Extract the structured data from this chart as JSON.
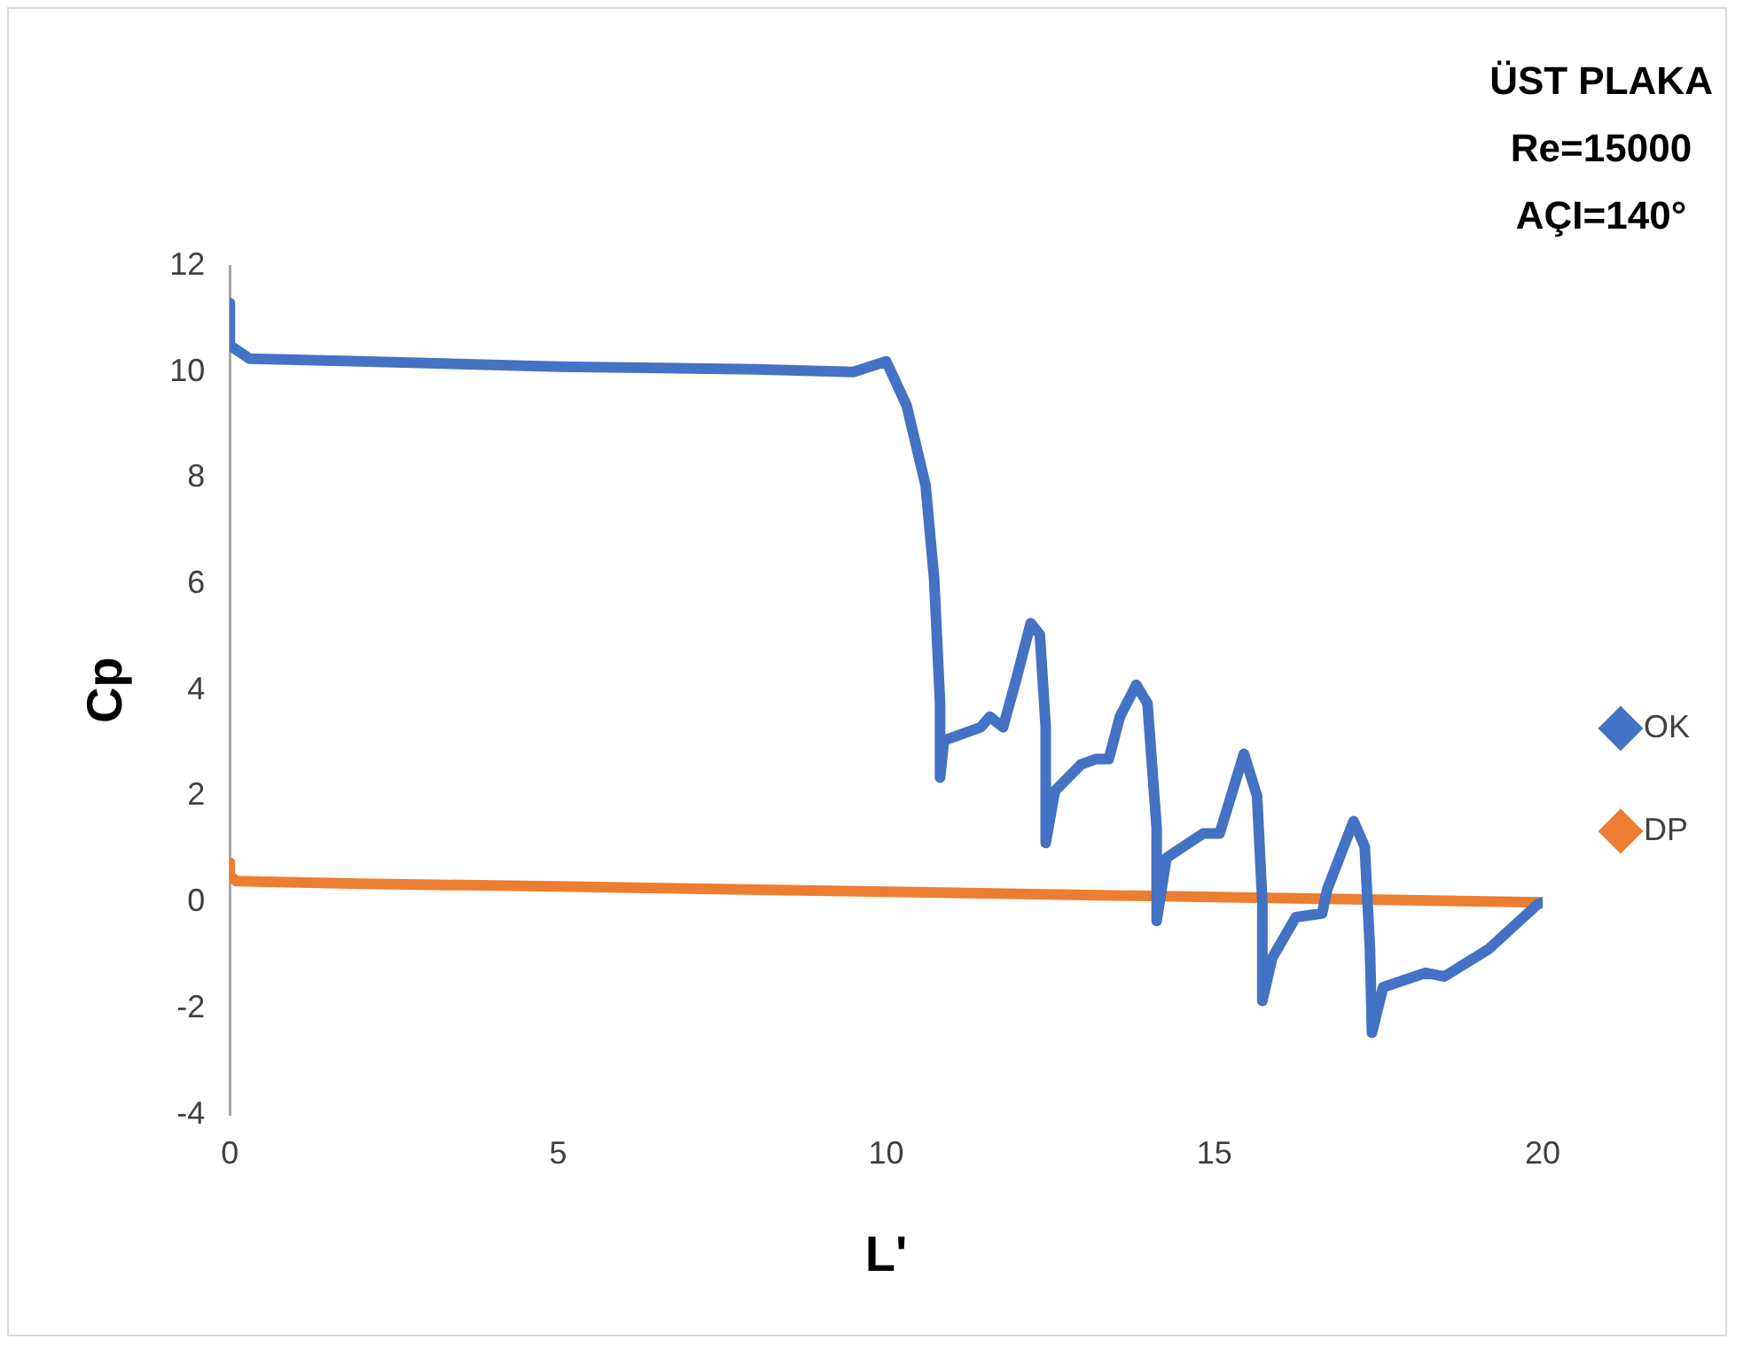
{
  "chart_data": {
    "type": "line",
    "xlabel": "L'",
    "ylabel": "Cp",
    "annotations": [
      "ÜST PLAKA",
      "Re=15000",
      "AÇI=140°"
    ],
    "xlim": [
      0,
      20
    ],
    "xticks": [
      0,
      5,
      10,
      15,
      20
    ],
    "ylim": [
      -4,
      12
    ],
    "yticks": [
      -4,
      -2,
      0,
      2,
      4,
      6,
      8,
      10,
      12
    ],
    "grid": false,
    "legend": "right",
    "marker": "diamond",
    "line_style": "solid",
    "series": [
      {
        "name": "OK",
        "color": "#4472c4",
        "x": [
          0,
          0,
          0.3,
          2,
          5,
          8,
          9.5,
          10,
          10.31,
          10.6,
          10.73,
          10.82,
          10.82,
          10.88,
          11.44,
          11.58,
          11.78,
          11.98,
          12.2,
          12.34,
          12.43,
          12.43,
          12.57,
          12.97,
          13.19,
          13.39,
          13.56,
          13.81,
          13.98,
          14.12,
          14.12,
          14.27,
          14.83,
          15.08,
          15.45,
          15.65,
          15.73,
          15.73,
          15.88,
          16.24,
          16.64,
          16.72,
          17.12,
          17.29,
          17.37,
          17.4,
          17.57,
          18.22,
          18.5,
          19.18,
          19.92,
          20
        ],
        "values": [
          11.3,
          10.5,
          10.25,
          10.2,
          10.1,
          10.05,
          10,
          10.2,
          9.37,
          7.86,
          6.1,
          3.75,
          2.35,
          3.05,
          3.3,
          3.5,
          3.3,
          4.2,
          5.26,
          5.05,
          3.3,
          1.12,
          2.1,
          2.6,
          2.7,
          2.7,
          3.5,
          4.1,
          3.75,
          1.4,
          -0.35,
          0.84,
          1.3,
          1.3,
          2.8,
          2,
          0,
          -1.86,
          -1.05,
          -0.28,
          -0.21,
          0.25,
          1.53,
          1.05,
          -0.9,
          -2.46,
          -1.6,
          -1.33,
          -1.4,
          -0.88,
          -0.04,
          0
        ]
      },
      {
        "name": "DP",
        "color": "#ed7d31",
        "x": [
          0,
          0,
          0.1,
          2,
          5,
          10,
          15,
          20
        ],
        "values": [
          0.75,
          0.5,
          0.4,
          0.35,
          0.3,
          0.2,
          0.1,
          0
        ]
      }
    ]
  }
}
